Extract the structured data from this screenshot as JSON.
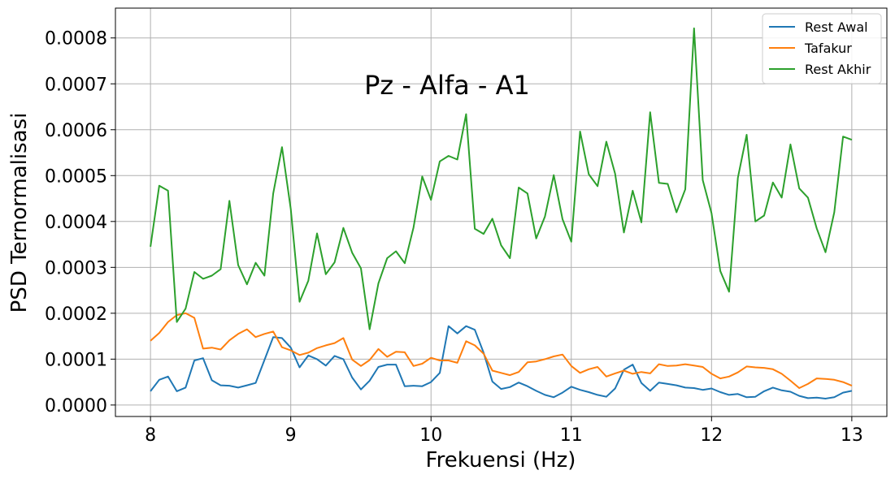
{
  "chart_data": {
    "type": "line",
    "title": "Pz - Alfa - A1",
    "xlabel": "Frekuensi (Hz)",
    "ylabel": "PSD Ternormalisasi",
    "xlim": [
      7.75,
      13.25
    ],
    "ylim": [
      -2.5e-05,
      0.000865
    ],
    "xticks": [
      8,
      9,
      10,
      11,
      12,
      13
    ],
    "xtick_labels": [
      "8",
      "9",
      "10",
      "11",
      "12",
      "13"
    ],
    "yticks": [
      0,
      0.0001,
      0.0002,
      0.0003,
      0.0004,
      0.0005,
      0.0006,
      0.0007,
      0.0008
    ],
    "ytick_labels": [
      "0.0000",
      "0.0001",
      "0.0002",
      "0.0003",
      "0.0004",
      "0.0005",
      "0.0006",
      "0.0007",
      "0.0008"
    ],
    "grid": true,
    "legend_position": "top-right",
    "x_start": 8,
    "x_step": 0.0617,
    "series": [
      {
        "name": "Rest Awal",
        "color": "#1f77b4",
        "values": [
          3e-05,
          5.5e-05,
          6.2e-05,
          3e-05,
          3.8e-05,
          9.7e-05,
          0.000102,
          5.4e-05,
          4.3e-05,
          4.2e-05,
          3.8e-05,
          4.3e-05,
          4.8e-05,
          9.8e-05,
          0.000148,
          0.000146,
          0.000125,
          8.2e-05,
          0.000108,
          0.0001,
          8.6e-05,
          0.000107,
          0.0001,
          6e-05,
          3.4e-05,
          5.3e-05,
          8.3e-05,
          8.8e-05,
          8.8e-05,
          4.1e-05,
          4.2e-05,
          4.1e-05,
          5e-05,
          7e-05,
          0.000172,
          0.000156,
          0.000172,
          0.000164,
          0.000114,
          5.1e-05,
          3.5e-05,
          3.9e-05,
          4.9e-05,
          4.1e-05,
          3.1e-05,
          2.2e-05,
          1.7e-05,
          2.7e-05,
          4e-05,
          3.3e-05,
          2.8e-05,
          2.2e-05,
          1.8e-05,
          3.6e-05,
          7.7e-05,
          8.8e-05,
          4.8e-05,
          3.1e-05,
          4.9e-05,
          4.6e-05,
          4.3e-05,
          3.8e-05,
          3.7e-05,
          3.3e-05,
          3.6e-05,
          2.8e-05,
          2.2e-05,
          2.4e-05,
          1.7e-05,
          1.8e-05,
          3e-05,
          3.8e-05,
          3.2e-05,
          2.9e-05,
          2e-05,
          1.5e-05,
          1.6e-05,
          1.4e-05,
          1.7e-05,
          2.7e-05,
          3.1e-05
        ]
      },
      {
        "name": "Tafakur",
        "color": "#ff7f0e",
        "values": [
          0.00014,
          0.000157,
          0.000181,
          0.000196,
          0.0002,
          0.00019,
          0.000123,
          0.000125,
          0.000121,
          0.000141,
          0.000155,
          0.000165,
          0.000148,
          0.000155,
          0.00016,
          0.000126,
          0.000119,
          0.000109,
          0.000114,
          0.000124,
          0.00013,
          0.000135,
          0.000146,
          9.9e-05,
          8.5e-05,
          9.8e-05,
          0.000122,
          0.000105,
          0.000116,
          0.000115,
          8.5e-05,
          9e-05,
          0.000103,
          9.7e-05,
          9.7e-05,
          9.2e-05,
          0.000139,
          0.00013,
          0.000112,
          7.5e-05,
          7e-05,
          6.5e-05,
          7.2e-05,
          9.3e-05,
          9.5e-05,
          0.0001,
          0.000106,
          0.00011,
          8.5e-05,
          7e-05,
          7.8e-05,
          8.3e-05,
          6.2e-05,
          6.9e-05,
          7.5e-05,
          6.8e-05,
          7.2e-05,
          6.9e-05,
          8.9e-05,
          8.5e-05,
          8.6e-05,
          8.9e-05,
          8.6e-05,
          8.3e-05,
          6.8e-05,
          5.8e-05,
          6.2e-05,
          7.1e-05,
          8.4e-05,
          8.2e-05,
          8.1e-05,
          7.8e-05,
          6.8e-05,
          5.3e-05,
          3.7e-05,
          4.6e-05,
          5.8e-05,
          5.7e-05,
          5.5e-05,
          5e-05,
          4.2e-05
        ]
      },
      {
        "name": "Rest Akhir",
        "color": "#2ca02c",
        "values": [
          0.000345,
          0.000478,
          0.000467,
          0.000181,
          0.00021,
          0.00029,
          0.000275,
          0.000282,
          0.000296,
          0.000445,
          0.000305,
          0.000263,
          0.00031,
          0.000282,
          0.000461,
          0.000562,
          0.000427,
          0.000225,
          0.000271,
          0.000374,
          0.000285,
          0.000311,
          0.000386,
          0.000332,
          0.000298,
          0.000165,
          0.000265,
          0.00032,
          0.000335,
          0.000309,
          0.000387,
          0.000498,
          0.000447,
          0.000531,
          0.000543,
          0.000535,
          0.000634,
          0.000384,
          0.000373,
          0.000406,
          0.000348,
          0.00032,
          0.000474,
          0.000461,
          0.000363,
          0.000411,
          0.000501,
          0.000405,
          0.000356,
          0.000596,
          0.000503,
          0.000477,
          0.000574,
          0.000504,
          0.000376,
          0.000467,
          0.000398,
          0.000638,
          0.000484,
          0.000482,
          0.00042,
          0.00047,
          0.000821,
          0.00049,
          0.000418,
          0.000292,
          0.000247,
          0.000495,
          0.000589,
          0.0004,
          0.000413,
          0.000485,
          0.000452,
          0.000568,
          0.000472,
          0.000452,
          0.000385,
          0.000333,
          0.00042,
          0.000585,
          0.000578
        ]
      }
    ]
  }
}
